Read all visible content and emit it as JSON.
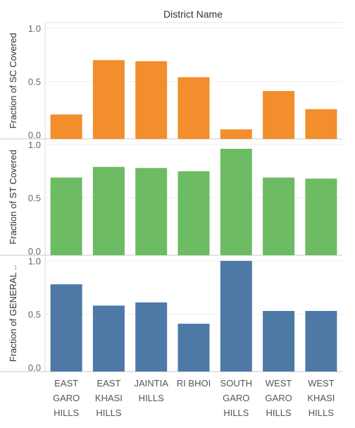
{
  "chart_data": {
    "type": "bar",
    "column_header": "District Name",
    "categories": [
      [
        "EAST",
        "GARO",
        "HILLS"
      ],
      [
        "EAST",
        "KHASI",
        "HILLS"
      ],
      [
        "JAINTIA",
        "HILLS"
      ],
      [
        "RI BHOI"
      ],
      [
        "SOUTH",
        "GARO",
        "HILLS"
      ],
      [
        "WEST",
        "GARO",
        "HILLS"
      ],
      [
        "WEST",
        "KHASI",
        "HILLS"
      ]
    ],
    "panels": [
      {
        "ylabel": "Fraction of SC Covered",
        "color": "#f28e2b",
        "ylim": [
          0,
          1.0
        ],
        "ticks": [
          "0.0",
          "0.5",
          "1.0"
        ],
        "values": [
          0.19,
          0.7,
          0.69,
          0.54,
          0.05,
          0.41,
          0.24
        ]
      },
      {
        "ylabel": "Fraction of ST Covered",
        "color": "#6dbb63",
        "ylim": [
          0,
          1.0
        ],
        "ticks": [
          "0.0",
          "0.5",
          "1.0"
        ],
        "values": [
          0.69,
          0.79,
          0.78,
          0.75,
          0.96,
          0.69,
          0.68
        ]
      },
      {
        "ylabel": "Fraction of GENERAL ..",
        "color": "#4e79a7",
        "ylim": [
          0,
          1.0
        ],
        "ticks": [
          "0.0",
          "0.5",
          "1.0"
        ],
        "values": [
          0.78,
          0.58,
          0.61,
          0.41,
          1.0,
          0.53,
          0.53
        ]
      }
    ],
    "grid": true,
    "legend": "none"
  }
}
